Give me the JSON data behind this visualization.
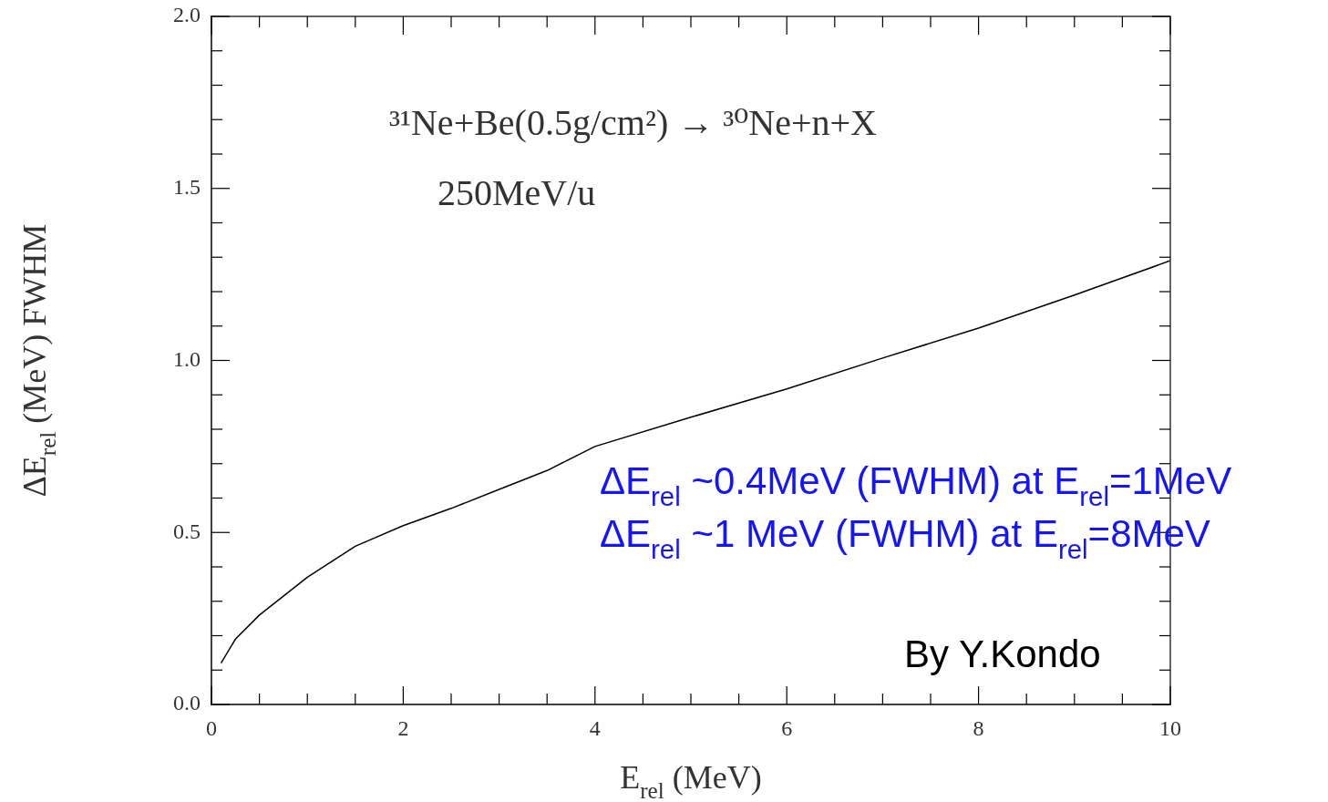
{
  "chart_data": {
    "type": "line",
    "title": "³¹Ne+Be(0.5g/cm²) → ³⁰Ne+n+X",
    "subtitle": "250MeV/u",
    "xlabel": "E$_{rel}$ (MeV)",
    "ylabel": "ΔE$_{rel}$ (MeV) FWHM",
    "x": [
      0.1,
      0.25,
      0.5,
      1,
      1.5,
      2,
      2.5,
      3,
      3.5,
      4,
      5,
      6,
      7,
      8,
      9,
      10
    ],
    "series": [
      {
        "color": "#000000",
        "values": [
          0.12,
          0.19,
          0.26,
          0.37,
          0.46,
          0.52,
          0.57,
          0.625,
          0.68,
          0.75,
          0.835,
          0.917,
          1.007,
          1.094,
          1.19,
          1.29
        ]
      }
    ],
    "xlim": [
      0,
      10
    ],
    "xticks": [
      0,
      {
        "value": 0.5,
        "label": null
      },
      {
        "value": 1,
        "label": null
      },
      {
        "value": 1.5,
        "label": null
      },
      2,
      {
        "value": 2.5,
        "label": null
      },
      {
        "value": 3,
        "label": null
      },
      {
        "value": 3.5,
        "label": null
      },
      4,
      {
        "value": 4.5,
        "label": null
      },
      {
        "value": 5,
        "label": null
      },
      {
        "value": 5.5,
        "label": null
      },
      6,
      {
        "value": 6.5,
        "label": null
      },
      {
        "value": 7,
        "label": null
      },
      {
        "value": 7.5,
        "label": null
      },
      8,
      {
        "value": 8.5,
        "label": null
      },
      {
        "value": 9,
        "label": null
      },
      {
        "value": 9.5,
        "label": null
      },
      10
    ],
    "ylim": [
      0,
      2
    ],
    "yticks": [
      {
        "value": 0,
        "label": "0.0"
      },
      {
        "value": 0.1,
        "label": null
      },
      {
        "value": 0.2,
        "label": null
      },
      {
        "value": 0.3,
        "label": null
      },
      {
        "value": 0.4,
        "label": null
      },
      {
        "value": 0.5,
        "label": "0.5"
      },
      {
        "value": 0.6,
        "label": null
      },
      {
        "value": 0.7,
        "label": null
      },
      {
        "value": 0.8,
        "label": null
      },
      {
        "value": 0.9,
        "label": null
      },
      {
        "value": 1,
        "label": "1.0"
      },
      {
        "value": 1.1,
        "label": null
      },
      {
        "value": 1.2,
        "label": null
      },
      {
        "value": 1.3,
        "label": null
      },
      {
        "value": 1.4,
        "label": null
      },
      {
        "value": 1.5,
        "label": "1.5"
      },
      {
        "value": 1.6,
        "label": null
      },
      {
        "value": 1.7,
        "label": null
      },
      {
        "value": 1.8,
        "label": null
      },
      {
        "value": 1.9,
        "label": null
      },
      {
        "value": 2,
        "label": "2.0"
      }
    ],
    "annotations": [
      "ΔE$_{rel}$ ~0.4MeV (FWHM) at E$_{rel}$=1MeV",
      "ΔE$_{rel}$ ~1 MeV (FWHM) at E$_{rel}$=8MeV",
      "By Y.Kondo"
    ],
    "legend": false,
    "marker": "none",
    "line_style": "solid"
  }
}
